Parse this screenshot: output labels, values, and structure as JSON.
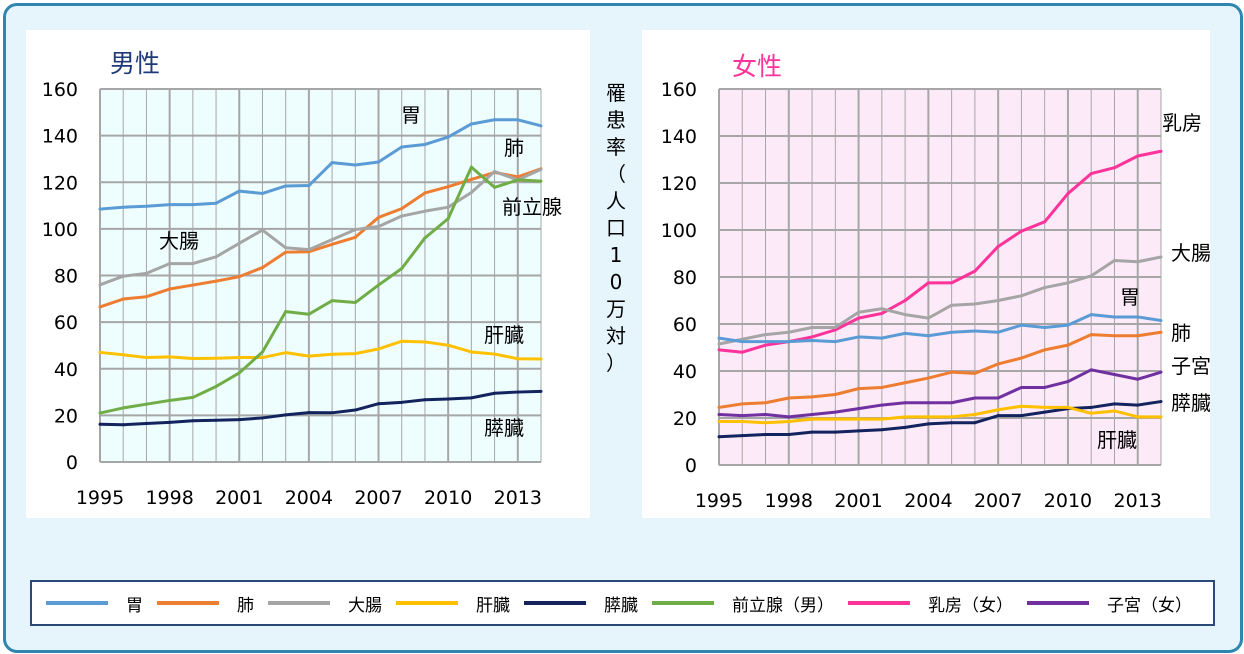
{
  "y_axis_label": "罹患率（人口10万対）",
  "chart_data": [
    {
      "type": "line",
      "title": "男性",
      "title_color": "#1f3a7a",
      "background": "#eefeff",
      "x": [
        1995,
        1996,
        1997,
        1998,
        1999,
        2000,
        2001,
        2002,
        2003,
        2004,
        2005,
        2006,
        2007,
        2008,
        2009,
        2010,
        2011,
        2012,
        2013,
        2014
      ],
      "xticks": [
        "1995",
        "1998",
        "2001",
        "2004",
        "2007",
        "2010",
        "2013"
      ],
      "yticks": [
        "0",
        "20",
        "40",
        "60",
        "80",
        "100",
        "120",
        "140",
        "160"
      ],
      "ylim": [
        0,
        160
      ],
      "grid": true,
      "series": [
        {
          "name": "胃",
          "color": "#5b9bd5",
          "values": [
            108.5,
            109.3,
            109.7,
            110.4,
            110.4,
            111,
            116.2,
            115.2,
            118.4,
            118.6,
            128.4,
            127.4,
            128.7,
            135.1,
            136.2,
            139.4,
            145,
            146.8,
            146.8,
            144.2
          ]
        },
        {
          "name": "肺",
          "color": "#ed7d31",
          "values": [
            66.5,
            69.9,
            70.9,
            74.2,
            75.9,
            77.6,
            79.5,
            83.4,
            90,
            90.2,
            93.4,
            96.4,
            104.9,
            108.7,
            115.4,
            118.1,
            121.2,
            124.2,
            122.3,
            125.8
          ]
        },
        {
          "name": "大腸",
          "color": "#a5a5a5",
          "values": [
            76,
            79.7,
            80.9,
            85.1,
            85.1,
            88,
            93.8,
            99.5,
            91.9,
            91.1,
            95.4,
            99.7,
            101,
            105.5,
            107.6,
            109.3,
            115.6,
            124.6,
            121,
            125.5
          ]
        },
        {
          "name": "肝臓",
          "color": "#ffc000",
          "values": [
            47,
            46,
            44.8,
            45.1,
            44.4,
            44.5,
            44.8,
            44.8,
            46.9,
            45.4,
            46.2,
            46.5,
            48.5,
            51.8,
            51.5,
            50.1,
            47.2,
            46.3,
            44.3,
            44.2
          ]
        },
        {
          "name": "膵臓",
          "color": "#13235e",
          "values": [
            16.2,
            16,
            16.5,
            17,
            17.7,
            17.9,
            18.2,
            18.9,
            20.2,
            21.2,
            21.1,
            22.3,
            25,
            25.6,
            26.7,
            27,
            27.5,
            29.5,
            30,
            30.3
          ]
        },
        {
          "name": "前立腺",
          "color": "#70ad47",
          "values": [
            21,
            23.2,
            24.8,
            26.4,
            27.7,
            32.4,
            38.2,
            47.2,
            64.5,
            63.4,
            69.2,
            68.4,
            75.9,
            83,
            96.1,
            104.4,
            126.5,
            117.8,
            121,
            120.5
          ]
        }
      ]
    },
    {
      "type": "line",
      "title": "女性",
      "title_color": "#ff3399",
      "background": "#fdeaf8",
      "x": [
        1995,
        1996,
        1997,
        1998,
        1999,
        2000,
        2001,
        2002,
        2003,
        2004,
        2005,
        2006,
        2007,
        2008,
        2009,
        2010,
        2011,
        2012,
        2013,
        2014
      ],
      "xticks": [
        "1995",
        "1998",
        "2001",
        "2004",
        "2007",
        "2010",
        "2013"
      ],
      "yticks": [
        "0",
        "20",
        "40",
        "60",
        "80",
        "100",
        "120",
        "140",
        "160"
      ],
      "ylim": [
        0,
        160
      ],
      "grid": true,
      "series": [
        {
          "name": "乳房",
          "color": "#ff3399",
          "values": [
            49,
            48,
            51,
            52.5,
            54.5,
            57.5,
            62.5,
            64.5,
            70,
            77.5,
            77.5,
            82.5,
            93,
            99.5,
            103.5,
            115.5,
            124,
            126.5,
            131.5,
            133.5
          ]
        },
        {
          "name": "大腸",
          "color": "#a5a5a5",
          "values": [
            51.5,
            53.5,
            55.5,
            56.5,
            58.5,
            58.5,
            65,
            66.5,
            64,
            62.5,
            68,
            68.5,
            70,
            72,
            75.5,
            77.5,
            80.5,
            87,
            86.5,
            88.5
          ]
        },
        {
          "name": "胃",
          "color": "#5b9bd5",
          "values": [
            54,
            52.5,
            52.5,
            52.5,
            53,
            52.5,
            54.5,
            54,
            56,
            55,
            56.5,
            57,
            56.5,
            59.5,
            58.5,
            59.5,
            64,
            63,
            63,
            61.5
          ]
        },
        {
          "name": "肺",
          "color": "#ed7d31",
          "values": [
            24.5,
            26,
            26.5,
            28.5,
            29,
            30,
            32.5,
            33,
            35,
            37,
            39.5,
            39,
            43,
            45.5,
            49,
            51,
            55.5,
            55,
            55,
            56.5
          ]
        },
        {
          "name": "子宮",
          "color": "#7030a0",
          "values": [
            21.5,
            21,
            21.5,
            20.5,
            21.5,
            22.5,
            24,
            25.5,
            26.5,
            26.5,
            26.5,
            28.5,
            28.5,
            33,
            33,
            35.5,
            40.5,
            38.5,
            36.5,
            39.5
          ]
        },
        {
          "name": "膵臓",
          "color": "#13235e",
          "values": [
            12,
            12.5,
            13,
            13,
            14,
            14,
            14.5,
            15,
            16,
            17.5,
            18,
            18,
            21,
            21,
            22.5,
            24,
            24.5,
            26,
            25.5,
            27
          ]
        },
        {
          "name": "肝臓",
          "color": "#ffc000",
          "values": [
            18.5,
            18.5,
            18,
            18.5,
            19.5,
            19.5,
            19.5,
            19.5,
            20.5,
            20.5,
            20.5,
            21.5,
            23.5,
            25,
            24.5,
            24.5,
            22,
            23,
            20.5,
            20.5
          ]
        }
      ]
    }
  ],
  "legend": [
    {
      "label": "胃",
      "color": "#5b9bd5"
    },
    {
      "label": "肺",
      "color": "#ed7d31"
    },
    {
      "label": "大腸",
      "color": "#a5a5a5"
    },
    {
      "label": "肝臓",
      "color": "#ffc000"
    },
    {
      "label": "膵臓",
      "color": "#13235e"
    },
    {
      "label": "前立腺（男）",
      "color": "#70ad47"
    },
    {
      "label": "乳房（女）",
      "color": "#ff3399"
    },
    {
      "label": "子宮（女）",
      "color": "#7030a0"
    }
  ]
}
